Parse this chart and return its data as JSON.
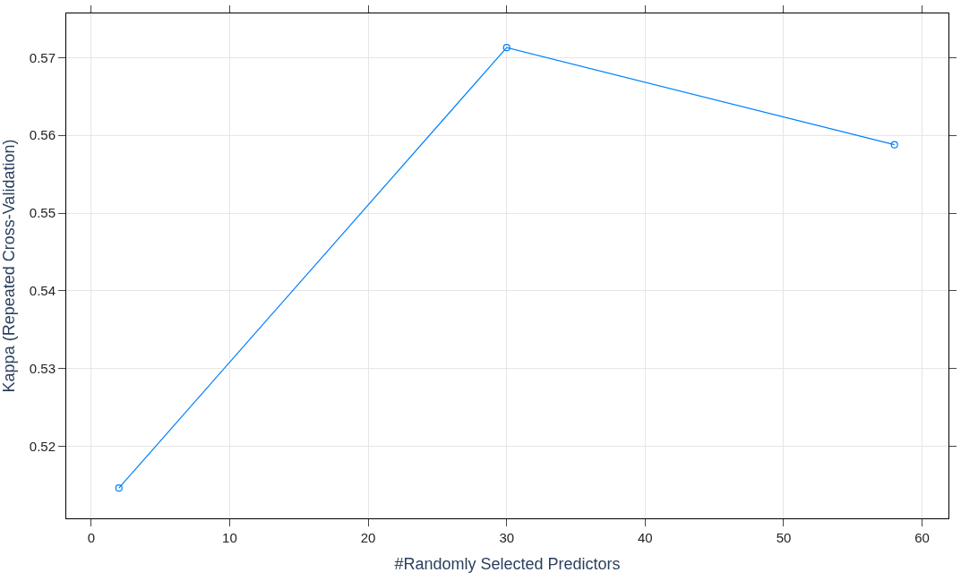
{
  "chart_data": {
    "type": "line",
    "xlabel": "#Randomly Selected Predictors",
    "ylabel": "Kappa (Repeated Cross-Validation)",
    "x": [
      2,
      30,
      58
    ],
    "series": [
      {
        "color": "#0080ff",
        "values": [
          0.5146,
          0.5713,
          0.5588
        ]
      }
    ],
    "xlim": [
      -1.8,
      61.9
    ],
    "xticks": [
      0,
      10,
      20,
      30,
      40,
      50,
      60
    ],
    "ylim": [
      0.5107,
      0.5757
    ],
    "yticks": [
      0.52,
      0.53,
      0.54,
      0.55,
      0.56,
      0.57
    ],
    "grid": true,
    "marker": "circle",
    "line_style": "solid",
    "legend": false
  }
}
